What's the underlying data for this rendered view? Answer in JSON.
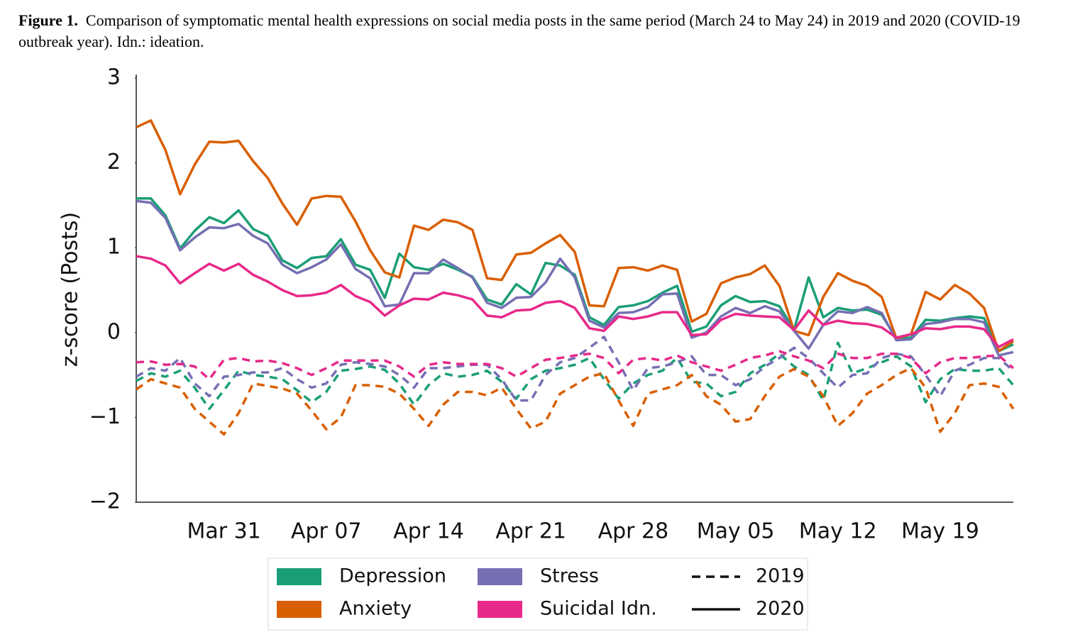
{
  "chart_data": {
    "type": "line",
    "figure_label": "Figure 1.",
    "caption": "Comparison of symptomatic mental health expressions on social media posts in the same period (March 24 to May 24) in 2019 and 2020 (COVID-19 outbreak year). Idn.: ideation.",
    "ylabel": "z-score (Posts)",
    "categories": [
      null,
      null,
      null,
      null,
      null,
      null,
      "Mar 31",
      null,
      null,
      null,
      null,
      null,
      null,
      "Apr 07",
      null,
      null,
      null,
      null,
      null,
      null,
      "Apr 14",
      null,
      null,
      null,
      null,
      null,
      null,
      "Apr 21",
      null,
      null,
      null,
      null,
      null,
      null,
      "Apr 28",
      null,
      null,
      null,
      null,
      null,
      null,
      "May 05",
      null,
      null,
      null,
      null,
      null,
      null,
      "May 12",
      null,
      null,
      null,
      null,
      null,
      null,
      "May 19",
      null,
      null,
      null,
      null,
      null
    ],
    "ylim": [
      -2,
      3
    ],
    "yticks": [
      {
        "value": -2,
        "label": "−2"
      },
      {
        "value": -1,
        "label": "−1"
      },
      0,
      1,
      2,
      3
    ],
    "grid": false,
    "series": [
      {
        "name": "Depression",
        "year": "2020",
        "dashed": false,
        "color": "#1b9e77",
        "values": [
          1.58,
          1.58,
          1.38,
          0.99,
          1.2,
          1.36,
          1.29,
          1.44,
          1.22,
          1.14,
          0.85,
          0.76,
          0.88,
          0.9,
          1.1,
          0.8,
          0.74,
          0.41,
          0.93,
          0.77,
          0.74,
          0.81,
          0.74,
          0.66,
          0.39,
          0.33,
          0.57,
          0.45,
          0.82,
          0.79,
          0.68,
          0.18,
          0.09,
          0.3,
          0.32,
          0.37,
          0.47,
          0.55,
          0.01,
          0.07,
          0.32,
          0.43,
          0.36,
          0.37,
          0.31,
          0.03,
          0.65,
          0.18,
          0.29,
          0.26,
          0.27,
          0.21,
          -0.07,
          -0.06,
          0.15,
          0.14,
          0.17,
          0.19,
          0.17,
          -0.22,
          -0.14
        ]
      },
      {
        "name": "Depression",
        "year": "2019",
        "dashed": true,
        "color": "#1b9e77",
        "values": [
          -0.57,
          -0.48,
          -0.52,
          -0.45,
          -0.65,
          -0.9,
          -0.68,
          -0.45,
          -0.5,
          -0.52,
          -0.55,
          -0.68,
          -0.82,
          -0.7,
          -0.45,
          -0.43,
          -0.4,
          -0.44,
          -0.6,
          -0.85,
          -0.62,
          -0.48,
          -0.52,
          -0.5,
          -0.45,
          -0.58,
          -0.78,
          -0.55,
          -0.45,
          -0.42,
          -0.38,
          -0.3,
          -0.55,
          -0.78,
          -0.6,
          -0.5,
          -0.45,
          -0.3,
          -0.58,
          -0.6,
          -0.75,
          -0.7,
          -0.48,
          -0.38,
          -0.25,
          -0.4,
          -0.5,
          -0.8,
          -0.12,
          -0.48,
          -0.42,
          -0.35,
          -0.28,
          -0.4,
          -0.82,
          -0.55,
          -0.43,
          -0.45,
          -0.45,
          -0.42,
          -0.62
        ]
      },
      {
        "name": "Anxiety",
        "year": "2020",
        "dashed": false,
        "color": "#d95f02",
        "values": [
          2.42,
          2.5,
          2.15,
          1.63,
          1.98,
          2.25,
          2.24,
          2.26,
          2.02,
          1.82,
          1.52,
          1.27,
          1.58,
          1.61,
          1.6,
          1.31,
          0.97,
          0.71,
          0.65,
          1.26,
          1.21,
          1.33,
          1.3,
          1.21,
          0.64,
          0.62,
          0.92,
          0.94,
          1.05,
          1.15,
          0.95,
          0.32,
          0.31,
          0.76,
          0.77,
          0.73,
          0.79,
          0.74,
          0.13,
          0.22,
          0.58,
          0.65,
          0.69,
          0.79,
          0.55,
          0.02,
          -0.03,
          0.42,
          0.7,
          0.61,
          0.55,
          0.42,
          -0.07,
          -0.02,
          0.48,
          0.39,
          0.56,
          0.46,
          0.29,
          -0.22,
          -0.1
        ]
      },
      {
        "name": "Anxiety",
        "year": "2019",
        "dashed": true,
        "color": "#d95f02",
        "values": [
          -0.67,
          -0.55,
          -0.6,
          -0.65,
          -0.9,
          -1.05,
          -1.2,
          -0.95,
          -0.6,
          -0.63,
          -0.66,
          -0.72,
          -0.92,
          -1.14,
          -1.0,
          -0.62,
          -0.62,
          -0.64,
          -0.72,
          -0.9,
          -1.1,
          -0.85,
          -0.7,
          -0.7,
          -0.74,
          -0.65,
          -0.9,
          -1.13,
          -1.05,
          -0.72,
          -0.62,
          -0.52,
          -0.48,
          -0.8,
          -1.1,
          -0.72,
          -0.67,
          -0.62,
          -0.5,
          -0.75,
          -0.85,
          -1.05,
          -1.02,
          -0.75,
          -0.52,
          -0.43,
          -0.52,
          -0.75,
          -1.1,
          -0.95,
          -0.72,
          -0.62,
          -0.5,
          -0.42,
          -0.65,
          -1.17,
          -0.95,
          -0.62,
          -0.6,
          -0.64,
          -0.9
        ]
      },
      {
        "name": "Stress",
        "year": "2020",
        "dashed": false,
        "color": "#7570b3",
        "values": [
          1.55,
          1.53,
          1.35,
          0.97,
          1.12,
          1.24,
          1.23,
          1.28,
          1.14,
          1.05,
          0.8,
          0.7,
          0.77,
          0.86,
          1.04,
          0.75,
          0.64,
          0.31,
          0.33,
          0.7,
          0.7,
          0.86,
          0.76,
          0.65,
          0.35,
          0.29,
          0.41,
          0.42,
          0.59,
          0.87,
          0.65,
          0.14,
          0.06,
          0.23,
          0.24,
          0.3,
          0.45,
          0.46,
          -0.06,
          0.0,
          0.19,
          0.29,
          0.23,
          0.31,
          0.25,
          0.02,
          -0.19,
          0.09,
          0.25,
          0.23,
          0.3,
          0.23,
          -0.09,
          -0.08,
          0.1,
          0.12,
          0.16,
          0.16,
          0.12,
          -0.27,
          -0.23
        ]
      },
      {
        "name": "Stress",
        "year": "2019",
        "dashed": true,
        "color": "#7570b3",
        "values": [
          -0.52,
          -0.42,
          -0.45,
          -0.3,
          -0.6,
          -0.75,
          -0.52,
          -0.5,
          -0.47,
          -0.47,
          -0.42,
          -0.55,
          -0.65,
          -0.6,
          -0.38,
          -0.35,
          -0.37,
          -0.4,
          -0.5,
          -0.65,
          -0.42,
          -0.42,
          -0.4,
          -0.38,
          -0.38,
          -0.55,
          -0.8,
          -0.8,
          -0.5,
          -0.35,
          -0.3,
          -0.18,
          -0.05,
          -0.35,
          -0.68,
          -0.42,
          -0.4,
          -0.35,
          -0.28,
          -0.5,
          -0.5,
          -0.62,
          -0.55,
          -0.4,
          -0.3,
          -0.18,
          -0.3,
          -0.48,
          -0.65,
          -0.5,
          -0.48,
          -0.3,
          -0.25,
          -0.28,
          -0.5,
          -0.75,
          -0.45,
          -0.38,
          -0.3,
          -0.3,
          -0.45
        ]
      },
      {
        "name": "Suicidal Idn.",
        "year": "2020",
        "dashed": false,
        "color": "#e7298a",
        "values": [
          0.9,
          0.87,
          0.79,
          0.58,
          0.7,
          0.81,
          0.73,
          0.81,
          0.68,
          0.6,
          0.5,
          0.43,
          0.44,
          0.47,
          0.56,
          0.43,
          0.36,
          0.2,
          0.32,
          0.4,
          0.39,
          0.47,
          0.44,
          0.39,
          0.2,
          0.18,
          0.26,
          0.27,
          0.35,
          0.37,
          0.29,
          0.05,
          0.02,
          0.19,
          0.16,
          0.19,
          0.24,
          0.24,
          -0.03,
          -0.02,
          0.15,
          0.22,
          0.2,
          0.19,
          0.18,
          0.03,
          0.26,
          0.09,
          0.14,
          0.11,
          0.1,
          0.06,
          -0.06,
          -0.02,
          0.05,
          0.04,
          0.07,
          0.07,
          0.04,
          -0.17,
          -0.08
        ]
      },
      {
        "name": "Suicidal Idn.",
        "year": "2019",
        "dashed": true,
        "color": "#e7298a",
        "values": [
          -0.35,
          -0.34,
          -0.38,
          -0.37,
          -0.4,
          -0.55,
          -0.32,
          -0.3,
          -0.34,
          -0.33,
          -0.36,
          -0.42,
          -0.5,
          -0.42,
          -0.33,
          -0.33,
          -0.33,
          -0.33,
          -0.4,
          -0.52,
          -0.38,
          -0.35,
          -0.37,
          -0.37,
          -0.37,
          -0.42,
          -0.52,
          -0.42,
          -0.32,
          -0.3,
          -0.27,
          -0.25,
          -0.3,
          -0.48,
          -0.32,
          -0.3,
          -0.33,
          -0.27,
          -0.35,
          -0.4,
          -0.45,
          -0.38,
          -0.3,
          -0.27,
          -0.22,
          -0.28,
          -0.33,
          -0.42,
          -0.25,
          -0.3,
          -0.3,
          -0.25,
          -0.25,
          -0.3,
          -0.48,
          -0.35,
          -0.3,
          -0.3,
          -0.28,
          -0.27,
          -0.42
        ]
      }
    ]
  }
}
